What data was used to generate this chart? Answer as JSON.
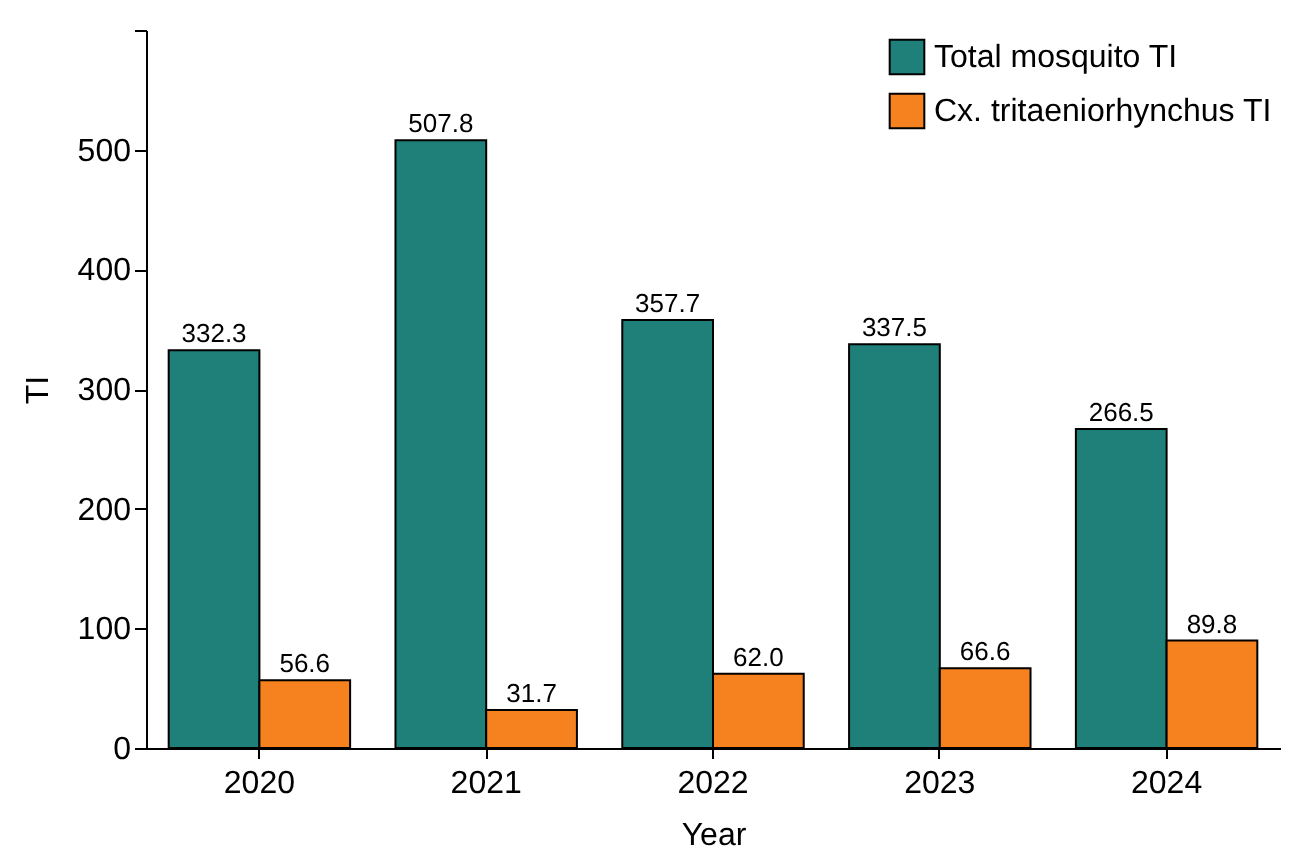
{
  "chart_data": {
    "type": "bar",
    "xlabel": "Year",
    "ylabel": "TI",
    "categories": [
      "2020",
      "2021",
      "2022",
      "2023",
      "2024"
    ],
    "series": [
      {
        "name": "Total mosquito TI",
        "color": "#1f7f79",
        "values": [
          332.3,
          507.8,
          357.7,
          337.5,
          266.5
        ],
        "value_labels": [
          "332.3",
          "507.8",
          "357.7",
          "337.5",
          "266.5"
        ]
      },
      {
        "name": "Cx. tritaeniorhynchus TI",
        "color": "#f5821f",
        "values": [
          56.6,
          31.7,
          62.0,
          66.6,
          89.8
        ],
        "value_labels": [
          "56.6",
          "31.7",
          "62.0",
          "66.6",
          "89.8"
        ]
      }
    ],
    "ylim": [
      0,
      600
    ],
    "yticks": [
      0,
      100,
      200,
      300,
      400,
      500,
      {
        "value": 600,
        "label": null
      }
    ],
    "grid": false,
    "legend": "top right"
  }
}
